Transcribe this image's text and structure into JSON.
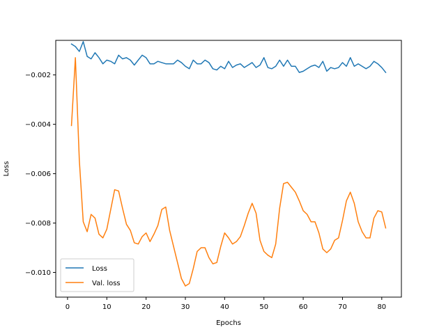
{
  "chart_data": {
    "type": "line",
    "title": "",
    "xlabel": "Epochs",
    "ylabel": "Loss",
    "xlim": [
      -3,
      85
    ],
    "ylim": [
      -0.011,
      -0.0006
    ],
    "xticks": [
      0,
      10,
      20,
      30,
      40,
      50,
      60,
      70,
      80
    ],
    "yticks": [
      -0.01,
      -0.008,
      -0.006,
      -0.004,
      -0.002
    ],
    "xtick_labels": [
      "0",
      "10",
      "20",
      "30",
      "40",
      "50",
      "60",
      "70",
      "80"
    ],
    "ytick_labels": [
      "−0.010",
      "−0.008",
      "−0.006",
      "−0.004",
      "−0.002"
    ],
    "grid": false,
    "legend_position": "lower-left",
    "series": [
      {
        "name": "Loss",
        "color": "#1f77b4",
        "x": [
          1,
          2,
          3,
          4,
          5,
          6,
          7,
          8,
          9,
          10,
          11,
          12,
          13,
          14,
          15,
          16,
          17,
          18,
          19,
          20,
          21,
          22,
          23,
          24,
          25,
          26,
          27,
          28,
          29,
          30,
          31,
          32,
          33,
          34,
          35,
          36,
          37,
          38,
          39,
          40,
          41,
          42,
          43,
          44,
          45,
          46,
          47,
          48,
          49,
          50,
          51,
          52,
          53,
          54,
          55,
          56,
          57,
          58,
          59,
          60,
          61,
          62,
          63,
          64,
          65,
          66,
          67,
          68,
          69,
          70,
          71,
          72,
          73,
          74,
          75,
          76,
          77,
          78,
          79,
          80,
          81
        ],
        "values": [
          -0.00075,
          -0.00085,
          -0.00105,
          -0.00065,
          -0.00125,
          -0.00135,
          -0.0011,
          -0.0013,
          -0.00155,
          -0.0014,
          -0.00145,
          -0.00155,
          -0.0012,
          -0.00135,
          -0.0013,
          -0.0014,
          -0.0016,
          -0.0014,
          -0.0012,
          -0.0013,
          -0.00155,
          -0.00155,
          -0.00145,
          -0.0015,
          -0.00155,
          -0.00155,
          -0.00155,
          -0.0014,
          -0.0015,
          -0.00165,
          -0.00175,
          -0.0014,
          -0.00155,
          -0.00155,
          -0.0014,
          -0.0015,
          -0.00175,
          -0.0018,
          -0.00165,
          -0.00175,
          -0.00145,
          -0.0017,
          -0.0016,
          -0.00155,
          -0.0017,
          -0.0016,
          -0.0015,
          -0.0017,
          -0.0016,
          -0.0013,
          -0.0017,
          -0.00175,
          -0.00165,
          -0.0014,
          -0.00165,
          -0.0014,
          -0.00165,
          -0.00165,
          -0.0019,
          -0.00185,
          -0.00175,
          -0.00165,
          -0.0016,
          -0.0017,
          -0.00145,
          -0.00185,
          -0.0017,
          -0.00175,
          -0.0017,
          -0.0015,
          -0.00165,
          -0.0013,
          -0.00165,
          -0.00155,
          -0.00165,
          -0.00175,
          -0.00165,
          -0.00145,
          -0.00155,
          -0.0017,
          -0.0019
        ]
      },
      {
        "name": "Val. loss",
        "color": "#ff7f0e",
        "x": [
          1,
          2,
          3,
          4,
          5,
          6,
          7,
          8,
          9,
          10,
          11,
          12,
          13,
          14,
          15,
          16,
          17,
          18,
          19,
          20,
          21,
          22,
          23,
          24,
          25,
          26,
          27,
          28,
          29,
          30,
          31,
          32,
          33,
          34,
          35,
          36,
          37,
          38,
          39,
          40,
          41,
          42,
          43,
          44,
          45,
          46,
          47,
          48,
          49,
          50,
          51,
          52,
          53,
          54,
          55,
          56,
          57,
          58,
          59,
          60,
          61,
          62,
          63,
          64,
          65,
          66,
          67,
          68,
          69,
          70,
          71,
          72,
          73,
          74,
          75,
          76,
          77,
          78,
          79,
          80,
          81
        ],
        "values": [
          -0.00405,
          -0.0013,
          -0.00545,
          -0.00795,
          -0.00835,
          -0.00765,
          -0.0078,
          -0.00845,
          -0.0086,
          -0.00825,
          -0.00745,
          -0.00665,
          -0.0067,
          -0.0074,
          -0.00805,
          -0.0083,
          -0.0088,
          -0.00885,
          -0.00855,
          -0.0084,
          -0.00875,
          -0.00845,
          -0.0081,
          -0.00745,
          -0.00735,
          -0.0083,
          -0.00895,
          -0.0096,
          -0.01025,
          -0.01055,
          -0.01045,
          -0.00985,
          -0.00915,
          -0.009,
          -0.009,
          -0.0094,
          -0.00965,
          -0.0096,
          -0.00895,
          -0.0084,
          -0.0086,
          -0.00885,
          -0.00875,
          -0.00855,
          -0.0081,
          -0.0076,
          -0.0072,
          -0.0076,
          -0.0087,
          -0.00915,
          -0.0093,
          -0.0094,
          -0.00885,
          -0.0074,
          -0.0064,
          -0.00635,
          -0.00655,
          -0.00675,
          -0.0071,
          -0.0075,
          -0.00765,
          -0.00795,
          -0.00795,
          -0.0084,
          -0.00905,
          -0.0092,
          -0.00905,
          -0.0087,
          -0.0086,
          -0.0079,
          -0.0071,
          -0.00675,
          -0.0072,
          -0.00795,
          -0.00835,
          -0.0086,
          -0.0086,
          -0.0078,
          -0.0075,
          -0.00755,
          -0.0082
        ]
      }
    ]
  }
}
